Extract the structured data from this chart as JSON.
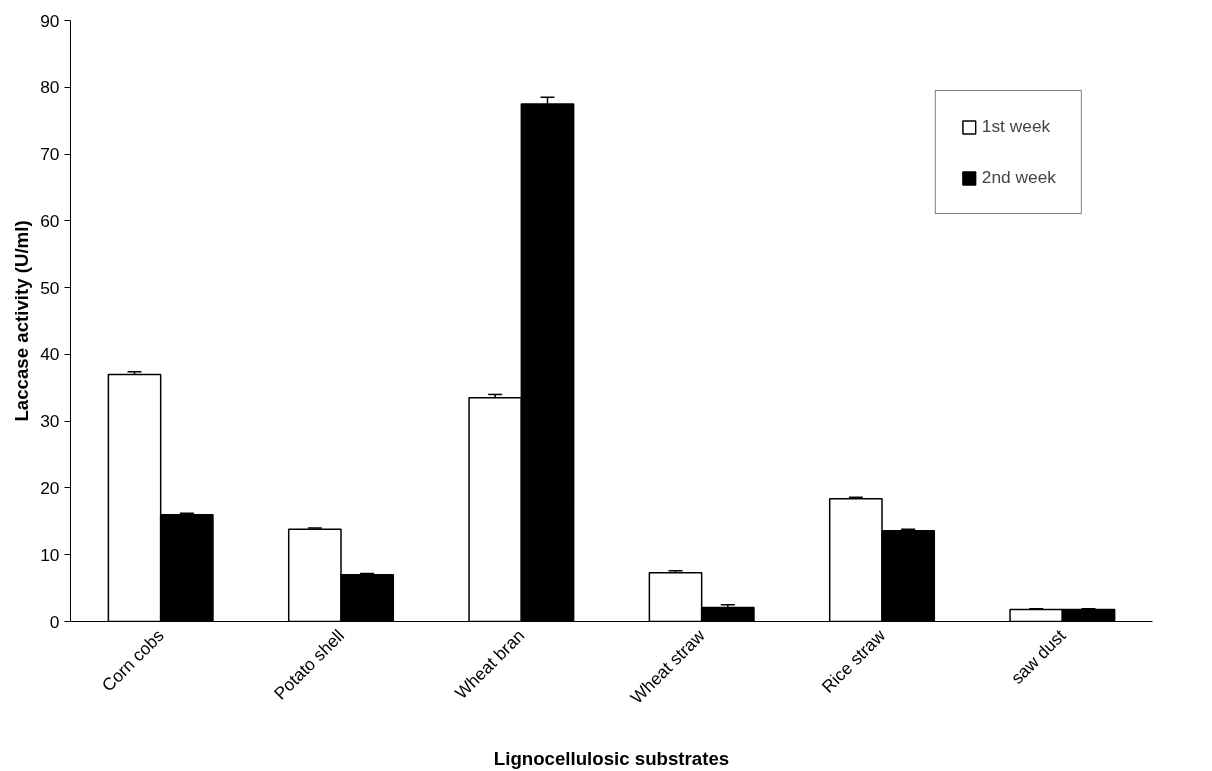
{
  "chart_data": {
    "type": "bar",
    "xlabel": "Lignocellulosic substrates",
    "ylabel": "Laccase activity (U/ml)",
    "categories": [
      "Corn cobs",
      "Potato shell",
      "Wheat bran",
      "Wheat straw",
      "Rice straw",
      "saw dust"
    ],
    "series": [
      {
        "name": "1st week",
        "color": "#ffffff",
        "values": [
          37,
          13.8,
          33.5,
          7.3,
          18.4,
          1.8
        ],
        "errors": [
          0.4,
          0.2,
          0.5,
          0.3,
          0.2,
          0.1
        ]
      },
      {
        "name": "2nd week",
        "color": "#000000",
        "values": [
          16,
          7,
          77.5,
          2.1,
          13.6,
          1.8
        ],
        "errors": [
          0.2,
          0.2,
          1.0,
          0.4,
          0.2,
          0.1
        ]
      }
    ],
    "ylim": [
      0,
      90
    ],
    "yticks": [
      0,
      10,
      20,
      30,
      40,
      50,
      60,
      70,
      80,
      90
    ],
    "grid": false,
    "legend": "top right"
  }
}
